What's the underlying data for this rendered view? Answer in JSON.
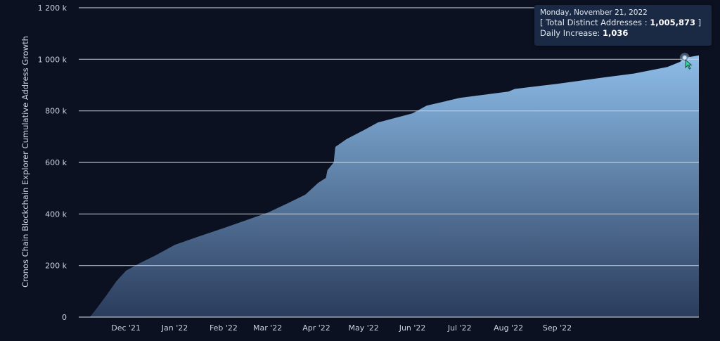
{
  "chart_data": {
    "type": "area",
    "ylabel": "Cronos Chain Blockchain Explorer Cumulative Address Growth",
    "xlabel": "",
    "ylim": [
      0,
      1200000
    ],
    "yticks": [
      0,
      200000,
      400000,
      600000,
      800000,
      1000000,
      1200000
    ],
    "ytick_labels": [
      "0",
      "200 k",
      "400 k",
      "600 k",
      "800 k",
      "1 000 k",
      "1 200 k"
    ],
    "xlim": [
      "2021-11-01",
      "2022-11-30"
    ],
    "xticks": [
      "2021-12-01",
      "2022-01-01",
      "2022-02-01",
      "2022-03-01",
      "2022-04-01",
      "2022-05-01",
      "2022-06-01",
      "2022-07-01",
      "2022-08-01",
      "2022-09-01"
    ],
    "xtick_labels": [
      "Dec '21",
      "Jan '22",
      "Feb '22",
      "Mar '22",
      "Apr '22",
      "May '22",
      "Jun '22",
      "Jul '22",
      "Aug '22",
      "Sep '22"
    ],
    "grid": "horizontal",
    "fill_color_top": "#8dbde9",
    "fill_color_bottom": "#2a3c5c",
    "series": [
      {
        "x": [
          "2021-11-08",
          "2021-11-12",
          "2021-11-18",
          "2021-11-25",
          "2021-12-01",
          "2021-12-10",
          "2021-12-20",
          "2022-01-01",
          "2022-01-15",
          "2022-02-01",
          "2022-02-15",
          "2022-03-01",
          "2022-03-15",
          "2022-03-25",
          "2022-04-02",
          "2022-04-07",
          "2022-04-08",
          "2022-04-12",
          "2022-04-13",
          "2022-04-20",
          "2022-05-01",
          "2022-05-10",
          "2022-06-01",
          "2022-06-10",
          "2022-07-01",
          "2022-08-01",
          "2022-08-05",
          "2022-09-01",
          "2022-10-01",
          "2022-10-20",
          "2022-11-10",
          "2022-11-18",
          "2022-11-21",
          "2022-11-30"
        ],
        "y": [
          0,
          30000,
          80000,
          140000,
          180000,
          210000,
          240000,
          280000,
          310000,
          345000,
          375000,
          405000,
          445000,
          475000,
          520000,
          540000,
          570000,
          600000,
          660000,
          690000,
          725000,
          755000,
          790000,
          820000,
          850000,
          875000,
          885000,
          905000,
          930000,
          945000,
          970000,
          990000,
          1005873,
          1015000
        ]
      }
    ],
    "tooltip": {
      "date": "Monday, November 21, 2022",
      "total_label": "[ Total Distinct Addresses :",
      "total_value": "1,005,873",
      "total_suffix": "]",
      "increase_label": "Daily Increase:",
      "increase_value": "1,036",
      "point_x": "2022-11-21",
      "point_y": 1005873
    }
  }
}
